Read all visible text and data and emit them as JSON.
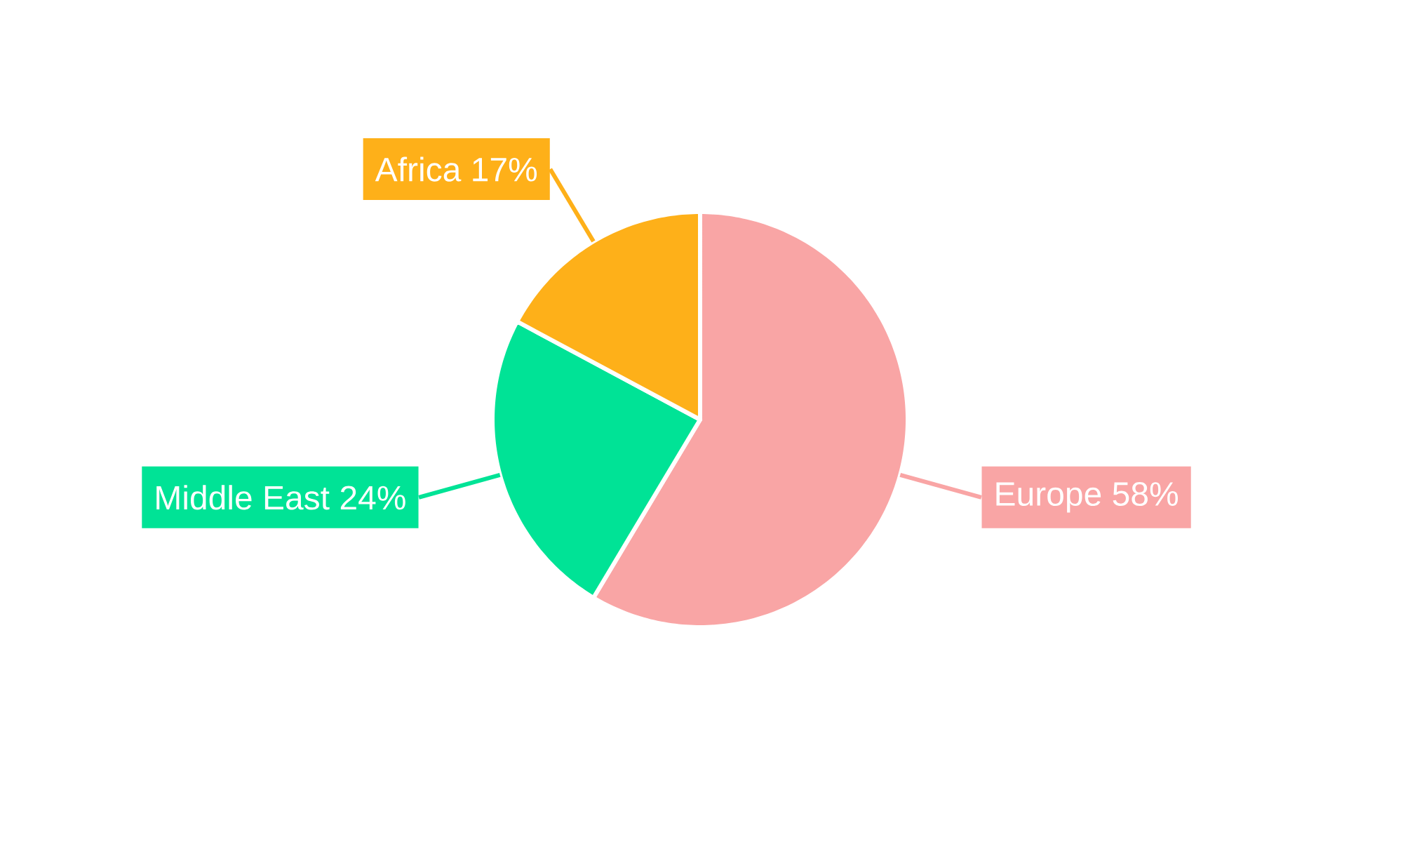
{
  "chart_data": {
    "type": "pie",
    "categories": [
      "Europe",
      "Middle East",
      "Africa"
    ],
    "values": [
      58,
      24,
      17
    ],
    "colors": [
      "#f9a5a5",
      "#00e396",
      "#feb019"
    ],
    "value_labels": [
      "58%",
      "24%",
      "17%"
    ]
  }
}
